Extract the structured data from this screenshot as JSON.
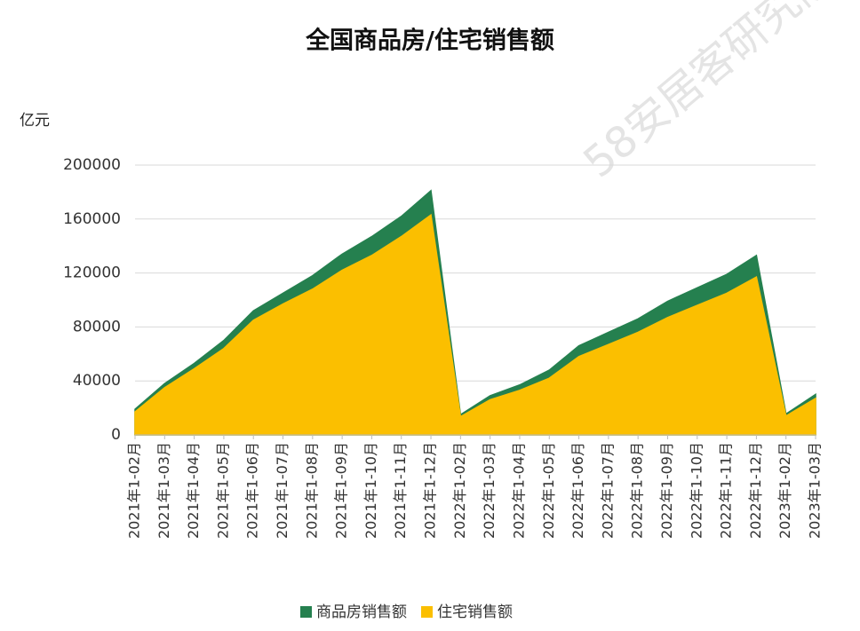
{
  "chart_data": {
    "type": "area",
    "title": "全国商品房/住宅销售额",
    "y_axis_label": "亿元",
    "watermark": "58安居客研究院",
    "categories": [
      "2021年1-02月",
      "2021年1-03月",
      "2021年1-04月",
      "2021年1-05月",
      "2021年1-06月",
      "2021年1-07月",
      "2021年1-08月",
      "2021年1-09月",
      "2021年1-10月",
      "2021年1-11月",
      "2021年1-12月",
      "2022年1-02月",
      "2022年1-03月",
      "2022年1-04月",
      "2022年1-05月",
      "2022年1-06月",
      "2022年1-07月",
      "2022年1-08月",
      "2022年1-09月",
      "2022年1-10月",
      "2022年1-11月",
      "2022年1-12月",
      "2023年1-02月",
      "2023年1-03月"
    ],
    "series": [
      {
        "name": "商品房销售额",
        "color": "#25804f",
        "values": [
          19000,
          38000,
          53000,
          70000,
          92000,
          105000,
          118000,
          134000,
          147000,
          162000,
          181000,
          15000,
          29000,
          37000,
          48000,
          66000,
          76000,
          86000,
          99000,
          109000,
          119000,
          133000,
          15500,
          30000
        ]
      },
      {
        "name": "住宅销售额",
        "color": "#fbbf00",
        "values": [
          17000,
          35000,
          49000,
          64000,
          85000,
          97000,
          108000,
          122000,
          133000,
          147000,
          163000,
          13500,
          26000,
          33000,
          42000,
          58000,
          67000,
          76000,
          87000,
          96000,
          105000,
          117000,
          14000,
          27000
        ]
      }
    ],
    "ylim": [
      0,
      200000
    ],
    "yticks": [
      0,
      40000,
      80000,
      120000,
      160000,
      200000
    ],
    "grid": true
  }
}
